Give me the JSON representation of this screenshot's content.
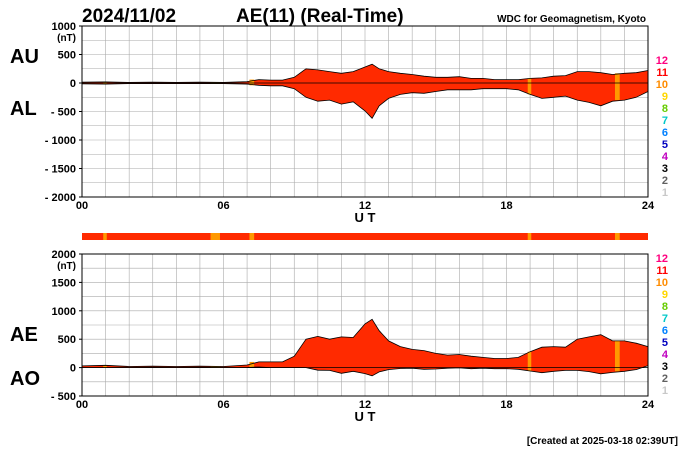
{
  "header": {
    "date": "2024/11/02",
    "title": "AE(11) (Real-Time)",
    "source": "WDC for Geomagnetism, Kyoto"
  },
  "footer": {
    "created": "[Created at 2025-03-18 02:39UT]"
  },
  "legend_numbers": {
    "labels": [
      "12",
      "11",
      "10",
      "9",
      "8",
      "7",
      "6",
      "5",
      "4",
      "3",
      "2",
      "1"
    ],
    "colors": [
      "#ff007f",
      "#ff0000",
      "#ff8c00",
      "#ffd700",
      "#66cc00",
      "#00c8c8",
      "#0080ff",
      "#0000c0",
      "#c000c0",
      "#000000",
      "#606060",
      "#c8c8c8"
    ]
  },
  "colors": {
    "fill_main": "#ff2a00",
    "fill_alt": "#ff9900",
    "grid": "#aaaaaa",
    "frame": "#000000"
  },
  "chart_data": [
    {
      "type": "area",
      "panel": "AU/AL",
      "side_labels": [
        "AU",
        "AL"
      ],
      "unit_label": "(nT)",
      "xlabel": "U T",
      "x_ticks": [
        "00",
        "06",
        "12",
        "18",
        "24"
      ],
      "xlim": [
        0,
        24
      ],
      "ylim": [
        -2000,
        1000
      ],
      "y_ticks": [
        1000,
        500,
        0,
        -500,
        -1000,
        -1500,
        -2000
      ],
      "y_tick_labels": [
        "1000",
        "500",
        "0",
        "- 500",
        "- 1000",
        "- 1500",
        "- 2000"
      ],
      "x": [
        0,
        1,
        2,
        3,
        4,
        5,
        6,
        7,
        7.5,
        8,
        8.5,
        9,
        9.5,
        10,
        10.5,
        11,
        11.5,
        12,
        12.3,
        12.6,
        13,
        13.5,
        14,
        14.5,
        15,
        15.5,
        16,
        16.5,
        17,
        17.5,
        18,
        18.5,
        19,
        19.5,
        20,
        20.5,
        21,
        21.5,
        22,
        22.5,
        23,
        23.5,
        24
      ],
      "series": [
        {
          "name": "AU",
          "values": [
            15,
            20,
            10,
            15,
            10,
            15,
            10,
            25,
            60,
            50,
            50,
            100,
            250,
            230,
            200,
            170,
            200,
            280,
            330,
            250,
            200,
            170,
            150,
            120,
            100,
            100,
            110,
            80,
            80,
            60,
            60,
            60,
            80,
            90,
            120,
            130,
            200,
            200,
            180,
            150,
            170,
            180,
            220
          ]
        },
        {
          "name": "AL",
          "values": [
            -15,
            -20,
            -10,
            -10,
            -10,
            -10,
            -10,
            -20,
            -40,
            -50,
            -50,
            -100,
            -250,
            -320,
            -300,
            -370,
            -330,
            -490,
            -620,
            -400,
            -270,
            -200,
            -170,
            -180,
            -150,
            -120,
            -120,
            -120,
            -100,
            -100,
            -100,
            -120,
            -200,
            -270,
            -250,
            -230,
            -300,
            -340,
            -400,
            -320,
            -300,
            -250,
            -150
          ]
        }
      ]
    },
    {
      "type": "area",
      "panel": "AE/AO",
      "side_labels": [
        "AE",
        "AO"
      ],
      "unit_label": "(nT)",
      "xlabel": "U T",
      "x_ticks": [
        "00",
        "06",
        "12",
        "18",
        "24"
      ],
      "xlim": [
        0,
        24
      ],
      "ylim": [
        -500,
        2000
      ],
      "y_ticks": [
        2000,
        1500,
        1000,
        500,
        0,
        -500
      ],
      "y_tick_labels": [
        "2000",
        "1500",
        "1000",
        "500",
        "0",
        "- 500"
      ],
      "x": [
        0,
        1,
        2,
        3,
        4,
        5,
        6,
        7,
        7.5,
        8,
        8.5,
        9,
        9.5,
        10,
        10.5,
        11,
        11.5,
        12,
        12.3,
        12.6,
        13,
        13.5,
        14,
        14.5,
        15,
        15.5,
        16,
        16.5,
        17,
        17.5,
        18,
        18.5,
        19,
        19.5,
        20,
        20.5,
        21,
        21.5,
        22,
        22.5,
        23,
        23.5,
        24
      ],
      "series": [
        {
          "name": "AE",
          "values": [
            30,
            40,
            20,
            25,
            20,
            25,
            20,
            45,
            100,
            100,
            100,
            200,
            500,
            550,
            500,
            540,
            530,
            770,
            850,
            650,
            470,
            370,
            320,
            300,
            250,
            220,
            230,
            200,
            180,
            160,
            160,
            180,
            280,
            360,
            370,
            360,
            500,
            540,
            580,
            470,
            470,
            430,
            370
          ]
        },
        {
          "name": "AO",
          "values": [
            0,
            0,
            0,
            2,
            0,
            2,
            0,
            2,
            10,
            0,
            0,
            0,
            0,
            -45,
            -50,
            -100,
            -65,
            -105,
            -145,
            -75,
            -35,
            -15,
            -10,
            -30,
            -25,
            -10,
            -5,
            -20,
            -10,
            -20,
            -20,
            -30,
            -60,
            -90,
            -65,
            -50,
            -50,
            -70,
            -110,
            -85,
            -65,
            -35,
            35
          ]
        }
      ]
    }
  ],
  "status_bar": {
    "x_from": [
      0,
      0.9,
      1.05,
      2.3,
      2.4,
      4.0,
      4.1,
      5.5,
      5.6,
      5.45,
      5.85,
      6.2,
      6.3,
      6.6,
      6.7,
      7.1,
      7.3,
      18.9,
      19.05,
      19.4,
      19.5,
      22.6,
      22.8
    ],
    "note": "",
    "segments": [
      {
        "from": 0,
        "to": 24,
        "level": 11
      },
      {
        "from": 0.9,
        "to": 1.05,
        "level": 10
      },
      {
        "from": 5.45,
        "to": 5.85,
        "level": 10
      },
      {
        "from": 7.1,
        "to": 7.3,
        "level": 10
      },
      {
        "from": 18.9,
        "to": 19.05,
        "level": 10
      },
      {
        "from": 22.6,
        "to": 22.8,
        "level": 10
      }
    ]
  }
}
